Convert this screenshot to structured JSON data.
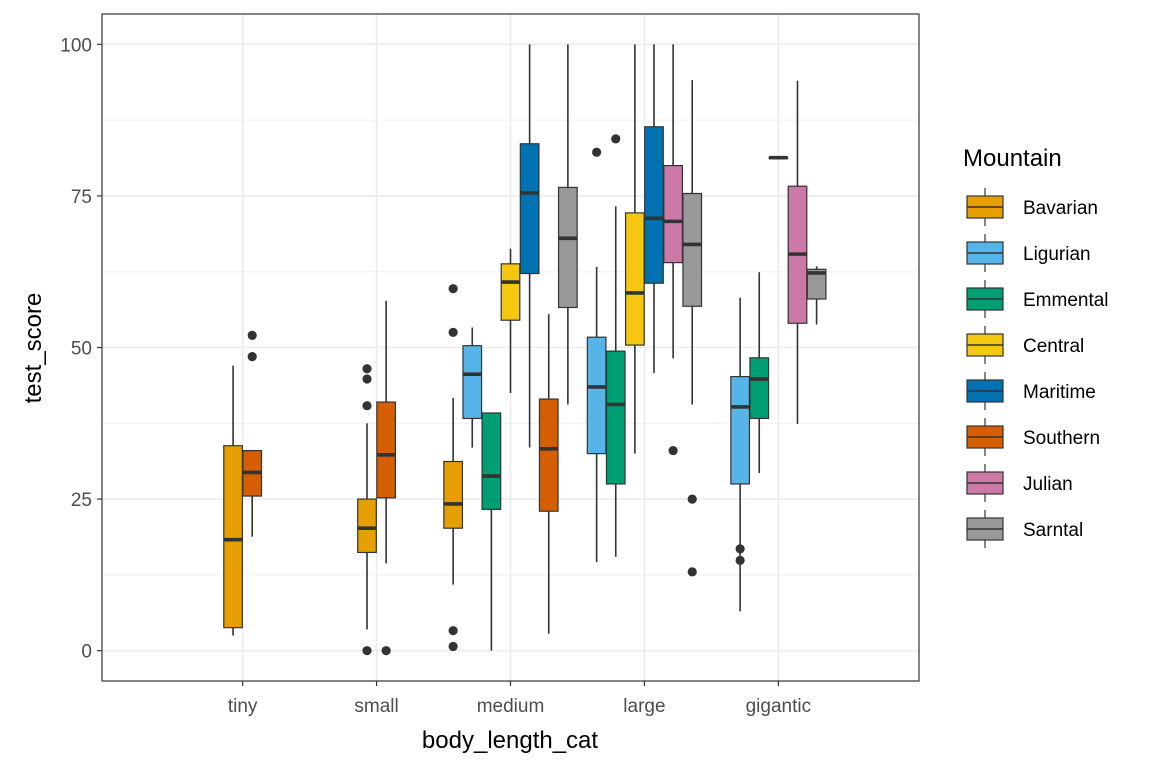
{
  "chart_data": {
    "type": "box",
    "xlabel": "body_length_cat",
    "ylabel": "test_score",
    "categories": [
      "tiny",
      "small",
      "medium",
      "large",
      "gigantic"
    ],
    "ylim": [
      -5,
      105
    ],
    "yticks": [
      0,
      25,
      50,
      75,
      100
    ],
    "grid": true,
    "legend": {
      "title": "Mountain",
      "position": "right"
    },
    "series": [
      {
        "name": "Bavarian",
        "color": "#E69F00",
        "boxes": [
          {
            "category": "tiny",
            "min": 2.5,
            "q1": 3.8,
            "median": 18.3,
            "q3": 33.8,
            "max": 47,
            "outliers": []
          },
          {
            "category": "small",
            "min": 3.5,
            "q1": 16.2,
            "median": 20.2,
            "q3": 25,
            "max": 37.5,
            "outliers": [
              0,
              40.4,
              44.8,
              46.5
            ]
          },
          {
            "category": "medium",
            "min": 10.9,
            "q1": 20.2,
            "median": 24.2,
            "q3": 31.2,
            "max": 41.7,
            "outliers": [
              0.7,
              3.3,
              52.5,
              59.7
            ]
          }
        ]
      },
      {
        "name": "Ligurian",
        "color": "#56B4E9",
        "boxes": [
          {
            "category": "medium",
            "min": 33.5,
            "q1": 38.3,
            "median": 45.6,
            "q3": 50.3,
            "max": 53.3,
            "outliers": []
          },
          {
            "category": "large",
            "min": 14.6,
            "q1": 32.5,
            "median": 43.5,
            "q3": 51.7,
            "max": 63.3,
            "outliers": [
              82.2
            ]
          },
          {
            "category": "gigantic",
            "min": 6.5,
            "q1": 27.5,
            "median": 40.2,
            "q3": 45.2,
            "max": 58.2,
            "outliers": [
              14.9,
              16.8
            ]
          }
        ]
      },
      {
        "name": "Emmental",
        "color": "#009E73",
        "boxes": [
          {
            "category": "medium",
            "min": 0,
            "q1": 23.3,
            "median": 28.8,
            "q3": 39.2,
            "max": 39.2,
            "outliers": []
          },
          {
            "category": "large",
            "min": 15.5,
            "q1": 27.5,
            "median": 40.6,
            "q3": 49.4,
            "max": 73.3,
            "outliers": [
              84.4
            ]
          },
          {
            "category": "gigantic",
            "min": 29.3,
            "q1": 38.3,
            "median": 44.8,
            "q3": 48.3,
            "max": 62.4,
            "outliers": []
          }
        ]
      },
      {
        "name": "Central",
        "color": "#F5C710",
        "boxes": [
          {
            "category": "medium",
            "min": 42.5,
            "q1": 54.5,
            "median": 60.8,
            "q3": 63.8,
            "max": 66.3,
            "outliers": []
          },
          {
            "category": "large",
            "min": 32.5,
            "q1": 50.4,
            "median": 59,
            "q3": 72.2,
            "max": 100,
            "outliers": []
          }
        ]
      },
      {
        "name": "Maritime",
        "color": "#0072B2",
        "boxes": [
          {
            "category": "medium",
            "min": 33.5,
            "q1": 62.2,
            "median": 75.5,
            "q3": 83.6,
            "max": 100,
            "outliers": []
          },
          {
            "category": "large",
            "min": 45.8,
            "q1": 60.6,
            "median": 71.3,
            "q3": 86.4,
            "max": 100,
            "outliers": []
          },
          {
            "category": "gigantic",
            "min": 81.3,
            "q1": 81.3,
            "median": 81.3,
            "q3": 81.3,
            "max": 81.3,
            "outliers": []
          }
        ]
      },
      {
        "name": "Southern",
        "color": "#D55E00",
        "boxes": [
          {
            "category": "tiny",
            "min": 18.8,
            "q1": 25.5,
            "median": 29.4,
            "q3": 33,
            "max": 33,
            "outliers": [
              48.5,
              52
            ]
          },
          {
            "category": "small",
            "min": 14.4,
            "q1": 25.2,
            "median": 32.3,
            "q3": 41,
            "max": 57.7,
            "outliers": [
              0
            ]
          },
          {
            "category": "medium",
            "min": 2.8,
            "q1": 23,
            "median": 33.3,
            "q3": 41.5,
            "max": 55.5,
            "outliers": []
          }
        ]
      },
      {
        "name": "Julian",
        "color": "#CC79A7",
        "boxes": [
          {
            "category": "large",
            "min": 48.2,
            "q1": 64,
            "median": 70.8,
            "q3": 80,
            "max": 100,
            "outliers": [
              33
            ]
          },
          {
            "category": "gigantic",
            "min": 37.4,
            "q1": 54,
            "median": 65.4,
            "q3": 76.6,
            "max": 94,
            "outliers": []
          }
        ]
      },
      {
        "name": "Sarntal",
        "color": "#999999",
        "boxes": [
          {
            "category": "medium",
            "min": 40.6,
            "q1": 56.6,
            "median": 68,
            "q3": 76.4,
            "max": 100,
            "outliers": []
          },
          {
            "category": "large",
            "min": 40.6,
            "q1": 56.8,
            "median": 67,
            "q3": 75.4,
            "max": 94.1,
            "outliers": [
              13,
              25
            ]
          },
          {
            "category": "gigantic",
            "min": 53.8,
            "q1": 58,
            "median": 62.3,
            "q3": 62.9,
            "max": 63.4,
            "outliers": []
          }
        ]
      }
    ]
  }
}
